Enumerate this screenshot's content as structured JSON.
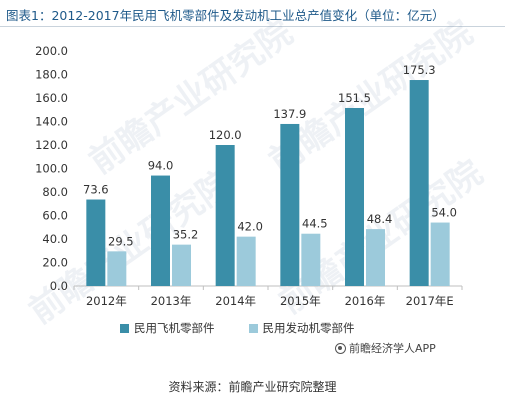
{
  "title": "图表1：2012-2017年民用飞机零部件及发动机工业总产值变化（单位：亿元）",
  "credit": "前瞻经济学人APP",
  "source": "资料来源：前瞻产业研究院整理",
  "watermark_text": "前瞻产业研究院",
  "colors": {
    "series1": "#3a8ea8",
    "series2": "#9ccadb",
    "axis": "#bfbfbf"
  },
  "chart_data": {
    "type": "bar",
    "categories": [
      "2012年",
      "2013年",
      "2014年",
      "2015年",
      "2016年",
      "2017年E"
    ],
    "series": [
      {
        "name": "民用飞机零部件",
        "values": [
          73.6,
          94.0,
          120.0,
          137.9,
          151.5,
          175.3
        ]
      },
      {
        "name": "民用发动机零部件",
        "values": [
          29.5,
          35.2,
          42.0,
          44.5,
          48.4,
          54.0
        ]
      }
    ],
    "value_labels": [
      [
        "73.6",
        "94.0",
        "120.0",
        "137.9",
        "151.5",
        "175.3"
      ],
      [
        "29.5",
        "35.2",
        "42.0",
        "44.5",
        "48.4",
        "54.0"
      ]
    ],
    "y_ticks": [
      "0.0",
      "20.0",
      "40.0",
      "60.0",
      "80.0",
      "100.0",
      "120.0",
      "140.0",
      "160.0",
      "180.0",
      "200.0"
    ],
    "ylim": [
      0,
      200
    ],
    "grid": false,
    "legend": "bottom"
  }
}
